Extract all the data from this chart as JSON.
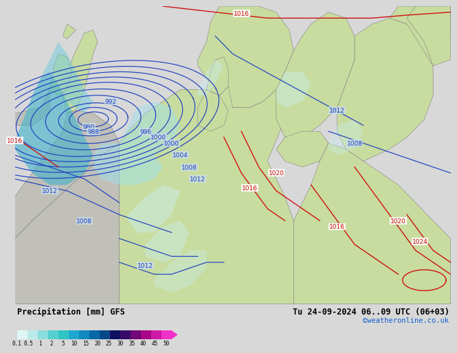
{
  "title_left": "Precipitation [mm] GFS",
  "title_right": "Tu 24-09-2024 06..09 UTC (06+03)",
  "credit": "©weatheronline.co.uk",
  "colorbar_values": [
    0.1,
    0.5,
    1,
    2,
    5,
    10,
    15,
    20,
    25,
    30,
    35,
    40,
    45,
    50
  ],
  "colorbar_colors": [
    "#dff5f5",
    "#baeaea",
    "#8adddd",
    "#55cfcf",
    "#30c4c4",
    "#20a8d0",
    "#1088c0",
    "#0868a8",
    "#064888",
    "#101060",
    "#380a68",
    "#700878",
    "#a80888",
    "#d018a8",
    "#f030c8"
  ],
  "bg_color": "#d8d8d8",
  "sea_color": "#c8dce8",
  "land_color": "#c8dca0",
  "grey_land": "#c0c0b8",
  "blue_color": "#2040c0",
  "red_color": "#d01010",
  "precip_v_light": "#c8eef0",
  "precip_light": "#a0e0ec",
  "precip_mid": "#70ccdc",
  "precip_strong": "#40b4cc"
}
